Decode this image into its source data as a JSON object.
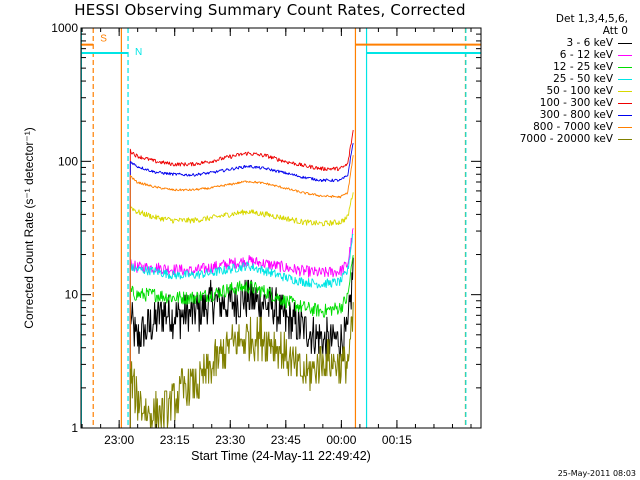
{
  "chart_data": {
    "type": "line",
    "title": "HESSI Observing Summary Count Rates, Corrected",
    "xlabel": "Start Time (24-May-11 22:49:42)",
    "ylabel": "Corrected Count Rate (s⁻¹ detector⁻¹)",
    "yscale": "log",
    "ylim": [
      1,
      1000
    ],
    "y_ticks": [
      1,
      10,
      100,
      1000
    ],
    "y_tick_labels": [
      "1",
      "10",
      "100",
      "1000"
    ],
    "xlim_minutes": [
      0,
      108
    ],
    "x_tick_minutes": [
      10.3,
      25.3,
      40.3,
      55.3,
      70.3,
      85.3
    ],
    "x_tick_labels": [
      "23:00",
      "23:15",
      "23:30",
      "23:45",
      "00:00",
      "00:15"
    ],
    "x_unit": "minutes after 22:49:42",
    "grid": false,
    "legend": {
      "position": "right",
      "header": [
        "Det 1,3,4,5,6,",
        "Att 0"
      ],
      "entries": [
        {
          "label": "3 - 6 keV",
          "color": "#000000"
        },
        {
          "label": "6 - 12 keV",
          "color": "#ff00ff"
        },
        {
          "label": "12 - 25 keV",
          "color": "#00dd00"
        },
        {
          "label": "25 - 50 keV",
          "color": "#00e5e5"
        },
        {
          "label": "50 - 100 keV",
          "color": "#d8d800"
        },
        {
          "label": "100 - 300 keV",
          "color": "#ee0000"
        },
        {
          "label": "300 - 800 keV",
          "color": "#0000ee"
        },
        {
          "label": "800 - 7000 keV",
          "color": "#ff7f00"
        },
        {
          "label": "7000 - 20000 keV",
          "color": "#808000"
        }
      ]
    },
    "series": [
      {
        "name": "3 - 6 keV",
        "color": "#000000",
        "noise": 0.35,
        "x": [
          13.3,
          15,
          18,
          22,
          25,
          28,
          32,
          36,
          40,
          45,
          48,
          52,
          55,
          58,
          60,
          63,
          66,
          69,
          72,
          73.5
        ],
        "y": [
          7,
          4.5,
          5.5,
          7.5,
          7,
          7,
          7.5,
          9,
          8.5,
          9.5,
          9,
          8,
          6.5,
          6,
          5.5,
          5,
          4.5,
          4.5,
          5,
          16
        ]
      },
      {
        "name": "6 - 12 keV",
        "color": "#ff00ff",
        "noise": 0.1,
        "x": [
          13.3,
          15,
          20,
          25,
          30,
          35,
          40,
          45,
          50,
          55,
          60,
          65,
          70,
          72,
          73.5
        ],
        "y": [
          17,
          16,
          16,
          15.5,
          15,
          16,
          17,
          18,
          17,
          16,
          15,
          14.5,
          15,
          17,
          30
        ]
      },
      {
        "name": "12 - 25 keV",
        "color": "#00dd00",
        "noise": 0.12,
        "x": [
          13.3,
          15,
          20,
          25,
          30,
          35,
          40,
          45,
          50,
          55,
          60,
          65,
          70,
          72,
          73.5
        ],
        "y": [
          10.5,
          10,
          10,
          9.5,
          9.5,
          10,
          11,
          11.5,
          10.5,
          9,
          8,
          7.5,
          8,
          9.5,
          20
        ]
      },
      {
        "name": "25 - 50 keV",
        "color": "#00e5e5",
        "noise": 0.08,
        "x": [
          13.3,
          15,
          20,
          25,
          30,
          35,
          40,
          45,
          50,
          55,
          60,
          65,
          70,
          72,
          73.5
        ],
        "y": [
          16,
          15.5,
          15,
          14,
          14,
          14.5,
          15.5,
          16.5,
          15,
          13.5,
          12.5,
          12,
          12.5,
          15,
          30
        ]
      },
      {
        "name": "50 - 100 keV",
        "color": "#d8d800",
        "noise": 0.05,
        "x": [
          13.3,
          15,
          20,
          25,
          30,
          35,
          40,
          45,
          50,
          55,
          60,
          65,
          70,
          72,
          73.5
        ],
        "y": [
          46,
          42,
          38,
          36,
          36,
          37.5,
          40,
          42,
          40,
          37.5,
          35,
          34,
          35,
          38,
          60
        ]
      },
      {
        "name": "100 - 300 keV",
        "color": "#ee0000",
        "noise": 0.035,
        "x": [
          13.3,
          15,
          20,
          25,
          30,
          35,
          40,
          45,
          50,
          55,
          60,
          65,
          70,
          72,
          73.5
        ],
        "y": [
          120,
          110,
          100,
          95,
          95,
          100,
          108,
          115,
          110,
          100,
          93,
          88,
          88,
          95,
          170
        ]
      },
      {
        "name": "300 - 800 keV",
        "color": "#0000ee",
        "noise": 0.025,
        "x": [
          13.3,
          15,
          20,
          25,
          30,
          35,
          40,
          45,
          50,
          55,
          60,
          65,
          70,
          72,
          73.5
        ],
        "y": [
          100,
          92,
          83,
          80,
          79,
          82,
          87,
          92,
          88,
          82,
          76,
          72,
          72,
          78,
          140
        ]
      },
      {
        "name": "800 - 7000 keV",
        "color": "#ff7f00",
        "noise": 0.02,
        "x": [
          13.3,
          15,
          20,
          25,
          30,
          35,
          40,
          45,
          50,
          55,
          60,
          65,
          70,
          72,
          73.5
        ],
        "y": [
          78,
          70,
          64,
          61,
          61,
          63,
          67,
          71,
          68,
          63,
          58,
          55,
          54,
          58,
          110
        ]
      },
      {
        "name": "7000 - 20000 keV",
        "color": "#808000",
        "noise": 0.35,
        "x": [
          13.3,
          15,
          18,
          22,
          25,
          28,
          32,
          36,
          40,
          45,
          48,
          52,
          55,
          58,
          60,
          63,
          66,
          69,
          72,
          73.5
        ],
        "y": [
          2.5,
          1.7,
          1.3,
          1.3,
          1.6,
          2.0,
          2.2,
          3.0,
          4.2,
          4.7,
          4.8,
          4.3,
          3.6,
          2.8,
          2.5,
          2.7,
          3.3,
          3.0,
          3.0,
          6.5
        ]
      }
    ],
    "annotations": [
      {
        "label": "S",
        "color": "#ff7f00",
        "y_value": 750,
        "x_start": 0,
        "x_end": 3.3,
        "dashed_x": 3.3
      },
      {
        "label": "N",
        "color": "#00e5e5",
        "y_value": 650,
        "x_start": 0,
        "x_end": 12.7,
        "dashed_x": 12.7
      }
    ]
  },
  "page": {
    "date_stamp": "25-May-2011 08:03"
  }
}
